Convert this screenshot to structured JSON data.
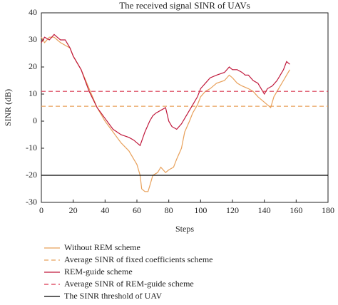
{
  "chart_data": {
    "type": "line",
    "title": "The received signal SINR of UAVs",
    "x_label": "Steps",
    "y_label": "SINR (dB)",
    "xlim": [
      0,
      180
    ],
    "xticks": [
      0,
      20,
      40,
      60,
      80,
      100,
      120,
      140,
      160,
      180
    ],
    "ylim": [
      -30,
      40
    ],
    "yticks": [
      -30,
      -20,
      -10,
      0,
      10,
      20,
      30,
      40
    ],
    "grid": false,
    "legend": "bottom",
    "series": [
      {
        "name": "Without REM scheme",
        "color": "#e8a05a",
        "linestyle": "solid",
        "x": [
          0,
          2,
          5,
          8,
          10,
          12,
          15,
          18,
          20,
          25,
          30,
          35,
          40,
          45,
          50,
          55,
          58,
          60,
          62,
          63,
          65,
          67,
          68,
          70,
          73,
          75,
          78,
          80,
          83,
          85,
          88,
          90,
          93,
          95,
          98,
          100,
          103,
          106,
          110,
          115,
          118,
          120,
          123,
          126,
          130,
          133,
          136,
          140,
          142,
          144,
          146,
          148,
          150,
          152,
          154,
          156
        ],
        "values": [
          31,
          29,
          31,
          31,
          30,
          29,
          28,
          27,
          24,
          19,
          12,
          5,
          0,
          -4,
          -8,
          -11,
          -14,
          -16,
          -20,
          -25,
          -26,
          -26,
          -24,
          -20,
          -19,
          -17,
          -19,
          -18,
          -17,
          -14,
          -10,
          -4,
          0,
          3,
          6,
          9,
          11,
          12,
          14,
          15,
          17,
          16,
          14,
          13,
          12,
          11,
          9,
          7,
          6,
          5,
          9,
          11,
          13,
          15,
          17,
          19
        ]
      },
      {
        "name": "Average SINR of fixed coefficients scheme",
        "color": "#e8a05a",
        "linestyle": "dashed",
        "x": [
          0,
          180
        ],
        "values": [
          5.5,
          5.5
        ]
      },
      {
        "name": "REM-guide scheme",
        "color": "#c0193c",
        "linestyle": "solid",
        "x": [
          0,
          2,
          5,
          8,
          10,
          12,
          15,
          18,
          20,
          25,
          30,
          35,
          40,
          45,
          50,
          55,
          58,
          60,
          62,
          65,
          68,
          70,
          72,
          75,
          78,
          80,
          82,
          85,
          88,
          90,
          93,
          95,
          98,
          100,
          103,
          106,
          110,
          115,
          118,
          120,
          123,
          126,
          128,
          130,
          133,
          136,
          140,
          142,
          145,
          148,
          150,
          152,
          154,
          156
        ],
        "values": [
          29,
          31,
          30,
          32,
          31,
          30,
          30,
          27,
          24,
          19,
          11,
          5,
          1,
          -3,
          -5,
          -6,
          -7,
          -8,
          -9,
          -4,
          0,
          2,
          3,
          4,
          5,
          0,
          -2,
          -3,
          -1,
          1,
          4,
          6,
          9,
          12,
          14,
          16,
          17,
          18,
          20,
          19,
          19,
          18,
          17,
          17,
          15,
          14,
          10,
          12,
          13,
          15,
          17,
          19,
          22,
          21
        ]
      },
      {
        "name": "Average SINR of REM-guide scheme",
        "color": "#d9364f",
        "linestyle": "dashed",
        "x": [
          0,
          180
        ],
        "values": [
          11,
          11
        ]
      },
      {
        "name": "The SINR threshold of UAV",
        "color": "#000000",
        "linestyle": "solid",
        "x": [
          0,
          180
        ],
        "values": [
          -20,
          -20
        ]
      }
    ]
  }
}
